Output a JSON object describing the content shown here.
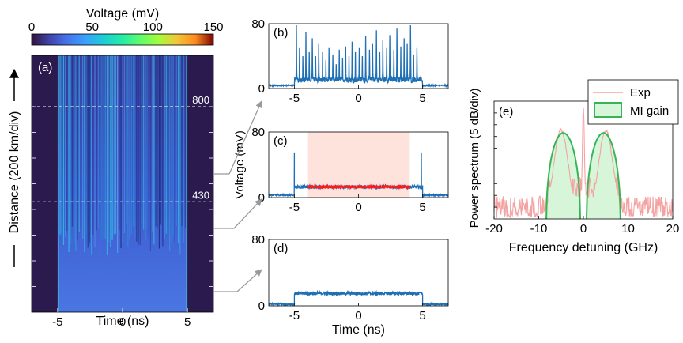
{
  "colorbar": {
    "title": "Voltage (mV)",
    "range": [
      0,
      150
    ],
    "ticks": [
      "0",
      "50",
      "100",
      "150"
    ],
    "colormap": "turbo"
  },
  "y_axis_common": {
    "label": "Distance (200 km/div)"
  },
  "chart_data": [
    {
      "id": "a",
      "panel_label": "(a)",
      "type": "heatmap",
      "xlabel": "Time (ns)",
      "xlim": [
        -7,
        7
      ],
      "x_ticks": [
        "-5",
        "0",
        "5"
      ],
      "y_divisions": 10,
      "pulse_window": [
        -5,
        5
      ],
      "markers": [
        {
          "label": "800",
          "distance_km": 800
        },
        {
          "label": "430",
          "distance_km": 430
        }
      ],
      "background_color": "#2a1a4e",
      "pulse_color_low": "#3a5bd6"
    },
    {
      "id": "b",
      "panel_label": "(b)",
      "type": "line",
      "ylim": [
        0,
        80
      ],
      "y_ticks": [
        "0",
        "80"
      ],
      "xlim": [
        -7,
        7
      ],
      "x_ticks": [
        "-5",
        "0",
        "5"
      ],
      "series": [
        {
          "color": "#1f6fb4",
          "baseline_mV": 3,
          "spikes": [
            {
              "t": -4.85,
              "v": 78
            },
            {
              "t": -4.6,
              "v": 50
            },
            {
              "t": -4.35,
              "v": 40
            },
            {
              "t": -4.1,
              "v": 70
            },
            {
              "t": -3.85,
              "v": 45
            },
            {
              "t": -3.6,
              "v": 62
            },
            {
              "t": -3.35,
              "v": 40
            },
            {
              "t": -3.1,
              "v": 55
            },
            {
              "t": -2.8,
              "v": 45
            },
            {
              "t": -2.55,
              "v": 35
            },
            {
              "t": -2.3,
              "v": 50
            },
            {
              "t": -2.0,
              "v": 42
            },
            {
              "t": -1.75,
              "v": 30
            },
            {
              "t": -1.5,
              "v": 48
            },
            {
              "t": -1.25,
              "v": 38
            },
            {
              "t": -1.0,
              "v": 52
            },
            {
              "t": -0.75,
              "v": 40
            },
            {
              "t": -0.5,
              "v": 58
            },
            {
              "t": -0.25,
              "v": 45
            },
            {
              "t": 0.05,
              "v": 50
            },
            {
              "t": 0.3,
              "v": 40
            },
            {
              "t": 0.55,
              "v": 65
            },
            {
              "t": 0.85,
              "v": 48
            },
            {
              "t": 1.1,
              "v": 55
            },
            {
              "t": 1.4,
              "v": 72
            },
            {
              "t": 1.65,
              "v": 45
            },
            {
              "t": 1.9,
              "v": 60
            },
            {
              "t": 2.2,
              "v": 50
            },
            {
              "t": 2.45,
              "v": 66
            },
            {
              "t": 2.75,
              "v": 48
            },
            {
              "t": 3.0,
              "v": 74
            },
            {
              "t": 3.3,
              "v": 52
            },
            {
              "t": 3.55,
              "v": 62
            },
            {
              "t": 3.8,
              "v": 55
            },
            {
              "t": 4.05,
              "v": 78
            },
            {
              "t": 4.3,
              "v": 42
            },
            {
              "t": 4.55,
              "v": 50
            }
          ]
        }
      ]
    },
    {
      "id": "c",
      "panel_label": "(c)",
      "type": "line",
      "ylabel": "Voltage (mV)",
      "ylim": [
        0,
        80
      ],
      "y_ticks": [
        "0",
        "80"
      ],
      "xlim": [
        -7,
        7
      ],
      "x_ticks": [
        "-5",
        "0",
        "5"
      ],
      "shaded_region": {
        "x": [
          -4,
          4
        ],
        "color": "#fde3dc"
      },
      "series": [
        {
          "color": "#1f6fb4",
          "segments": [
            {
              "t_start": -7,
              "t_end": -5,
              "level": 3
            },
            {
              "t_start": -5,
              "t_end": 5,
              "level": 13
            },
            {
              "t_start": 5,
              "t_end": 7,
              "level": 3
            }
          ],
          "edge_spikes": [
            {
              "t": -5,
              "v": 55
            },
            {
              "t": 4.9,
              "v": 55
            }
          ]
        },
        {
          "color": "#ff1a1a",
          "segments": [
            {
              "t_start": -4,
              "t_end": 4,
              "level": 13
            }
          ]
        }
      ]
    },
    {
      "id": "d",
      "panel_label": "(d)",
      "type": "line",
      "xlabel": "Time (ns)",
      "ylim": [
        0,
        80
      ],
      "y_ticks": [
        "0",
        "80"
      ],
      "xlim": [
        -7,
        7
      ],
      "x_ticks": [
        "-5",
        "0",
        "5"
      ],
      "series": [
        {
          "color": "#1f6fb4",
          "segments": [
            {
              "t_start": -7,
              "t_end": -5,
              "level": 2
            },
            {
              "t_start": -5,
              "t_end": 5,
              "level": 15
            },
            {
              "t_start": 5,
              "t_end": 7,
              "level": 2
            }
          ]
        }
      ]
    },
    {
      "id": "e",
      "panel_label": "(e)",
      "type": "line",
      "xlabel": "Frequency detuning (GHz)",
      "ylabel": "Power spectrum (5 dB/div)",
      "xlim": [
        -20,
        20
      ],
      "x_ticks": [
        "-20",
        "-10",
        "0",
        "10",
        "20"
      ],
      "y_divisions": 10,
      "legend": {
        "position": "top-right",
        "entries": [
          "Exp",
          "MI gain"
        ]
      },
      "series": [
        {
          "name": "Exp",
          "color": "#f4a3a3",
          "peaks": [
            {
              "f": -5,
              "level_div": 7.4
            },
            {
              "f": 5,
              "level_div": 7.4
            },
            {
              "f": 0,
              "level_div": 9.4
            }
          ],
          "noise_floor_div": 1.5
        },
        {
          "name": "MI gain",
          "color": "#35b556",
          "fill": "#d6f5d9",
          "lobes": [
            {
              "center": -4.5,
              "half_width": 3.8,
              "peak_div": 7.3
            },
            {
              "center": 4.5,
              "half_width": 3.8,
              "peak_div": 7.3
            }
          ]
        }
      ]
    }
  ]
}
